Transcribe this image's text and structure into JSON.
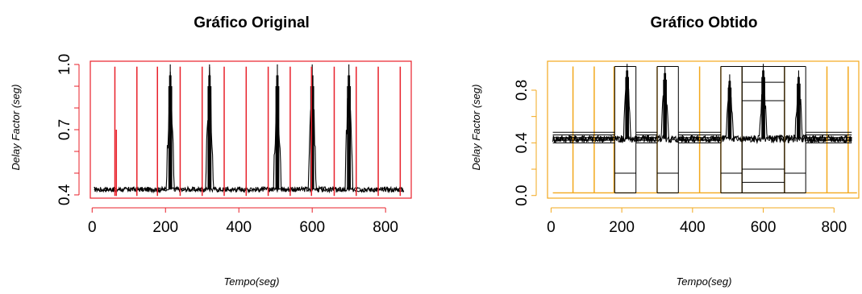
{
  "chart_data": [
    {
      "type": "line",
      "title": "Gráfico Original",
      "xlabel": "Tempo(seg)",
      "ylabel": "Delay Factor (seg)",
      "xlim": [
        -5,
        870
      ],
      "ylim": [
        0.385,
        1.015
      ],
      "x_ticks": [
        0,
        200,
        400,
        600,
        800
      ],
      "y_ticks": [
        0.4,
        0.7,
        1.0
      ],
      "y_tick_labels": [
        "0.4",
        "0.7",
        "1.0"
      ],
      "box_color": "#e8202a",
      "grid": false,
      "series": [
        {
          "color": "#000000",
          "baseline": 0.425,
          "baseline_noise": 0.012,
          "x_range": [
            5,
            850
          ],
          "spikes": [
            {
              "x": 213,
              "peak": 1.0
            },
            {
              "x": 320,
              "peak": 1.0
            },
            {
              "x": 505,
              "peak": 1.0
            },
            {
              "x": 600,
              "peak": 1.0
            },
            {
              "x": 700,
              "peak": 1.0
            }
          ]
        },
        {
          "color": "#e8202a",
          "vlines": [
            {
              "x": 62,
              "y0": 0.395,
              "y1": 0.99
            },
            {
              "x": 66,
              "y0": 0.395,
              "y1": 0.7
            },
            {
              "x": 122,
              "y0": 0.395,
              "y1": 0.99
            },
            {
              "x": 178,
              "y0": 0.395,
              "y1": 0.99
            },
            {
              "x": 240,
              "y0": 0.395,
              "y1": 0.99
            },
            {
              "x": 300,
              "y0": 0.395,
              "y1": 0.99
            },
            {
              "x": 360,
              "y0": 0.395,
              "y1": 0.99
            },
            {
              "x": 420,
              "y0": 0.395,
              "y1": 0.99
            },
            {
              "x": 480,
              "y0": 0.395,
              "y1": 0.99
            },
            {
              "x": 540,
              "y0": 0.395,
              "y1": 0.99
            },
            {
              "x": 598,
              "y0": 0.395,
              "y1": 0.99
            },
            {
              "x": 660,
              "y0": 0.395,
              "y1": 0.99
            },
            {
              "x": 720,
              "y0": 0.395,
              "y1": 0.99
            },
            {
              "x": 780,
              "y0": 0.395,
              "y1": 0.99
            },
            {
              "x": 840,
              "y0": 0.395,
              "y1": 0.99
            }
          ]
        }
      ]
    },
    {
      "type": "line",
      "title": "Gráfico Obtido",
      "xlabel": "Tempo(seg)",
      "ylabel": "Delay Factor (seg)",
      "xlim": [
        -10,
        870
      ],
      "ylim": [
        -0.02,
        1.02
      ],
      "x_ticks": [
        0,
        200,
        400,
        600,
        800
      ],
      "y_ticks": [
        0.0,
        0.4,
        0.8
      ],
      "y_tick_labels": [
        "0.0",
        "0.4",
        "0.8"
      ],
      "box_color": "#f2a81d",
      "grid": false,
      "series": [
        {
          "color": "#000000",
          "baseline": 0.43,
          "baseline_noise": 0.03,
          "x_range": [
            5,
            850
          ],
          "spikes": [
            {
              "x": 215,
              "peak": 1.0
            },
            {
              "x": 322,
              "peak": 0.98
            },
            {
              "x": 505,
              "peak": 0.92
            },
            {
              "x": 600,
              "peak": 1.0
            },
            {
              "x": 700,
              "peak": 0.95
            }
          ]
        },
        {
          "color": "#f2a81d",
          "baseline": 0.02,
          "vlines": [
            {
              "x": 62,
              "y0": 0.02,
              "y1": 0.98
            },
            {
              "x": 122,
              "y0": 0.02,
              "y1": 0.98
            },
            {
              "x": 178,
              "y0": 0.02,
              "y1": 0.98
            },
            {
              "x": 300,
              "y0": 0.02,
              "y1": 0.98
            },
            {
              "x": 420,
              "y0": 0.02,
              "y1": 0.98
            },
            {
              "x": 480,
              "y0": 0.02,
              "y1": 0.98
            },
            {
              "x": 540,
              "y0": 0.02,
              "y1": 0.98
            },
            {
              "x": 660,
              "y0": 0.02,
              "y1": 0.98
            },
            {
              "x": 780,
              "y0": 0.02,
              "y1": 0.98
            },
            {
              "x": 840,
              "y0": 0.02,
              "y1": 0.98
            }
          ]
        },
        {
          "color": "#000000",
          "steps": [
            {
              "x0": 5,
              "x1": 180,
              "levels": [
                0.4,
                0.42,
                0.44,
                0.46,
                0.48
              ]
            },
            {
              "x0": 180,
              "x1": 240,
              "levels": [
                0.02,
                0.17,
                0.98
              ]
            },
            {
              "x0": 240,
              "x1": 300,
              "levels": [
                0.4,
                0.42,
                0.44,
                0.46,
                0.48
              ]
            },
            {
              "x0": 300,
              "x1": 360,
              "levels": [
                0.02,
                0.17,
                0.98
              ]
            },
            {
              "x0": 360,
              "x1": 480,
              "levels": [
                0.4,
                0.42,
                0.44,
                0.46,
                0.48
              ]
            },
            {
              "x0": 480,
              "x1": 540,
              "levels": [
                0.02,
                0.17,
                0.98
              ]
            },
            {
              "x0": 540,
              "x1": 660,
              "levels": [
                0.02,
                0.1,
                0.2,
                0.72,
                0.86,
                0.98
              ]
            },
            {
              "x0": 660,
              "x1": 720,
              "levels": [
                0.02,
                0.17,
                0.98
              ]
            },
            {
              "x0": 720,
              "x1": 850,
              "levels": [
                0.4,
                0.42,
                0.44,
                0.46,
                0.48
              ]
            }
          ]
        }
      ]
    }
  ]
}
